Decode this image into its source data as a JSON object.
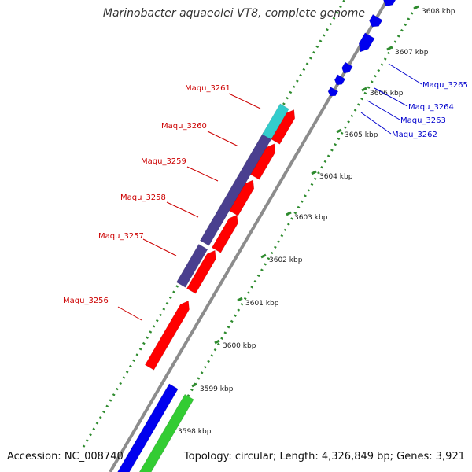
{
  "title": "Marinobacter aquaeolei VT8, complete genome",
  "accession": "Accession: NC_008740",
  "topology": "Topology: circular; Length: 4,326,849 bp; Genes: 3,921",
  "colors": {
    "backbone": "#8c8c8c",
    "reverse_label": "#cc0000",
    "forward_label": "#0000cc",
    "tick": "#2e8b2e",
    "gene_red": "#ff0000",
    "gene_purple": "#4a3f8f",
    "gene_cyan": "#33cccc",
    "gene_blue": "#0000ee",
    "gene_green": "#33cc33"
  },
  "kbp_ticks": [
    {
      "label": "3598 kbp"
    },
    {
      "label": "3599 kbp"
    },
    {
      "label": "3600 kbp"
    },
    {
      "label": "3601 kbp"
    },
    {
      "label": "3602 kbp"
    },
    {
      "label": "3603 kbp"
    },
    {
      "label": "3604 kbp"
    },
    {
      "label": "3605 kbp"
    },
    {
      "label": "3606 kbp"
    },
    {
      "label": "3607 kbp"
    },
    {
      "label": "3608 kbp"
    }
  ],
  "reverse_genes": [
    {
      "label": "Maqu_3256"
    },
    {
      "label": "Maqu_3257"
    },
    {
      "label": "Maqu_3258"
    },
    {
      "label": "Maqu_3259"
    },
    {
      "label": "Maqu_3260"
    },
    {
      "label": "Maqu_3261"
    }
  ],
  "forward_genes": [
    {
      "label": "Maqu_3262"
    },
    {
      "label": "Maqu_3263"
    },
    {
      "label": "Maqu_3264"
    },
    {
      "label": "Maqu_3265"
    }
  ]
}
